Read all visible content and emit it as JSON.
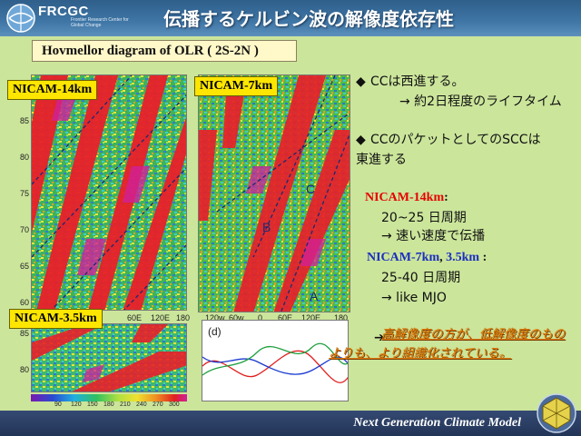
{
  "header": {
    "logo": "FRCGC",
    "logo_sub": "Frontier Research Center for Global Change",
    "title": "伝播するケルビン波の解像度依存性"
  },
  "subtitle": "Hovmellor diagram of OLR ( 2S-2N )",
  "plots": {
    "nicam14": {
      "label": "NICAM-14km",
      "y_ticks": [
        "85",
        "80",
        "75",
        "70",
        "65",
        "60"
      ]
    },
    "nicam7": {
      "label": "NICAM-7km",
      "x_ticks": [
        "120w",
        "60w",
        "0",
        "60E",
        "120E",
        "180"
      ],
      "markers": [
        "C",
        "B",
        "A"
      ]
    },
    "nicam35": {
      "label": "NICAM-3.5km",
      "y_ticks": [
        "85",
        "80"
      ]
    },
    "left_x_ticks": [
      "60E",
      "120E",
      "180"
    ],
    "colorbar": {
      "ticks": [
        "90",
        "120",
        "150",
        "180",
        "210",
        "240",
        "270",
        "300"
      ]
    },
    "line_plot": {
      "label": "(d)"
    }
  },
  "text": {
    "b1_line1": "CCは西進する。",
    "b1_line2": "→ 約2日程度のライフタイム",
    "b2_line1": "CCのパケットとしてのSCCは",
    "b2_line2": "東進する",
    "n14_label": "NICAM-14km",
    "n14_colon": ":",
    "n14_period": "20~25 日周期",
    "n14_speed": "→ 速い速度で伝播",
    "n7_label": "NICAM-7km",
    "n7_sep": ", ",
    "n35_label": "3.5km",
    "n7_colon": " :",
    "n7_period": "25-40 日周期",
    "n7_mjo": "→ like MJO",
    "conclusion_arrow": "➔",
    "conclusion": "高解像度の方が、低解像度のものよりも、より組織化されている。"
  },
  "footer": {
    "text": "Next Generation Climate Model"
  },
  "colors": {
    "header": "#3f76a6",
    "panel": "#cbe59b",
    "label_yellow": "#ffe600",
    "red": "#e60000",
    "blue": "#1a2ec0",
    "orange": "#e07800",
    "footer": "#223457"
  }
}
